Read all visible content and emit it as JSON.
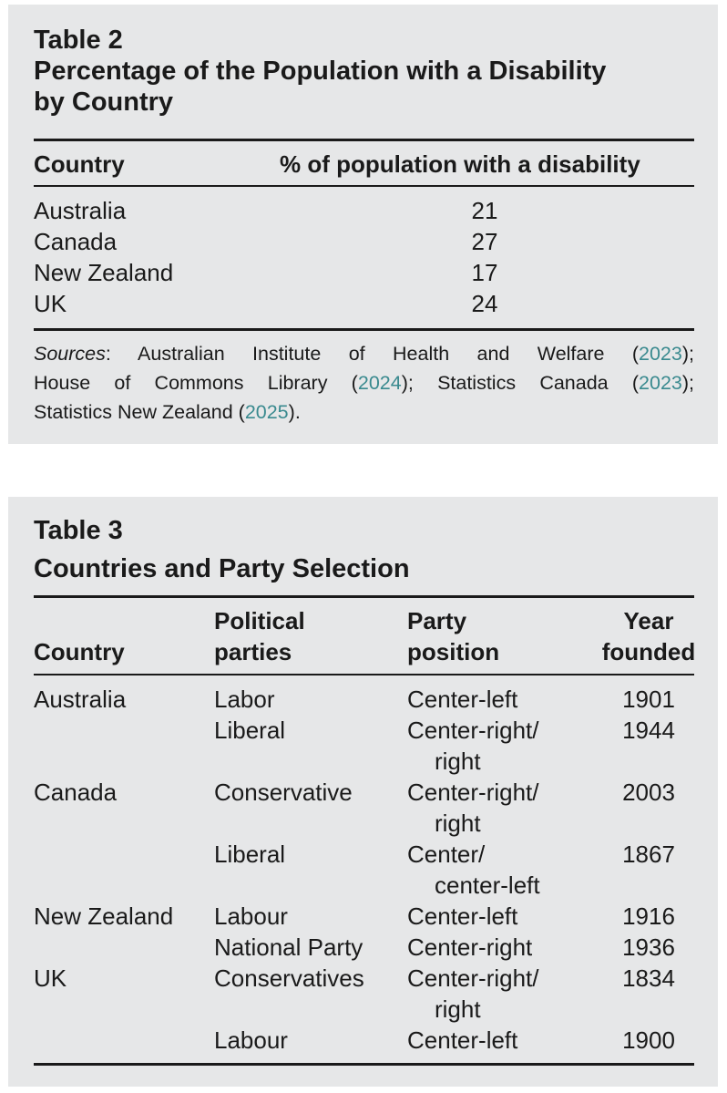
{
  "table2": {
    "label": "Table 2",
    "title_line1": "Percentage of the Population with a Disability",
    "title_line2": "by Country",
    "headers": {
      "country": "Country",
      "percent": "% of population with a disability"
    },
    "rows": [
      {
        "country": "Australia",
        "value": "21"
      },
      {
        "country": "Canada",
        "value": "27"
      },
      {
        "country": "New Zealand",
        "value": "17"
      },
      {
        "country": "UK",
        "value": "24"
      }
    ],
    "sources": {
      "label": "Sources",
      "s1": ": Australian Institute of Health and Welfare (",
      "y1": "2023",
      "s2": ");",
      "s3": "House of Commons Library (",
      "y2": "2024",
      "s4": "); Statistics Canada (",
      "y3": "2023",
      "s5": ");",
      "s6": "Statistics New Zealand (",
      "y4": "2025",
      "s7": ")."
    }
  },
  "table3": {
    "label": "Table 3",
    "title": "Countries and Party Selection",
    "headers": {
      "country": "Country",
      "parties_line1": "Political",
      "parties_line2": "parties",
      "position_line1": "Party",
      "position_line2": "position",
      "year_line1": "Year",
      "year_line2": "founded"
    },
    "rows": [
      {
        "country": "Australia",
        "party": "Labor",
        "position_line1": "Center-left",
        "position_line2": "",
        "year": "1901"
      },
      {
        "country": "",
        "party": "Liberal",
        "position_line1": "Center-right/",
        "position_line2": "right",
        "year": "1944"
      },
      {
        "country": "Canada",
        "party": "Conservative",
        "position_line1": "Center-right/",
        "position_line2": "right",
        "year": "2003"
      },
      {
        "country": "",
        "party": "Liberal",
        "position_line1": "Center/",
        "position_line2": "center-left",
        "year": "1867"
      },
      {
        "country": "New Zealand",
        "party": "Labour",
        "position_line1": "Center-left",
        "position_line2": "",
        "year": "1916"
      },
      {
        "country": "",
        "party": "National Party",
        "position_line1": "Center-right",
        "position_line2": "",
        "year": "1936"
      },
      {
        "country": "UK",
        "party": "Conservatives",
        "position_line1": "Center-right/",
        "position_line2": "right",
        "year": "1834"
      },
      {
        "country": "",
        "party": "Labour",
        "position_line1": "Center-left",
        "position_line2": "",
        "year": "1900"
      }
    ]
  }
}
